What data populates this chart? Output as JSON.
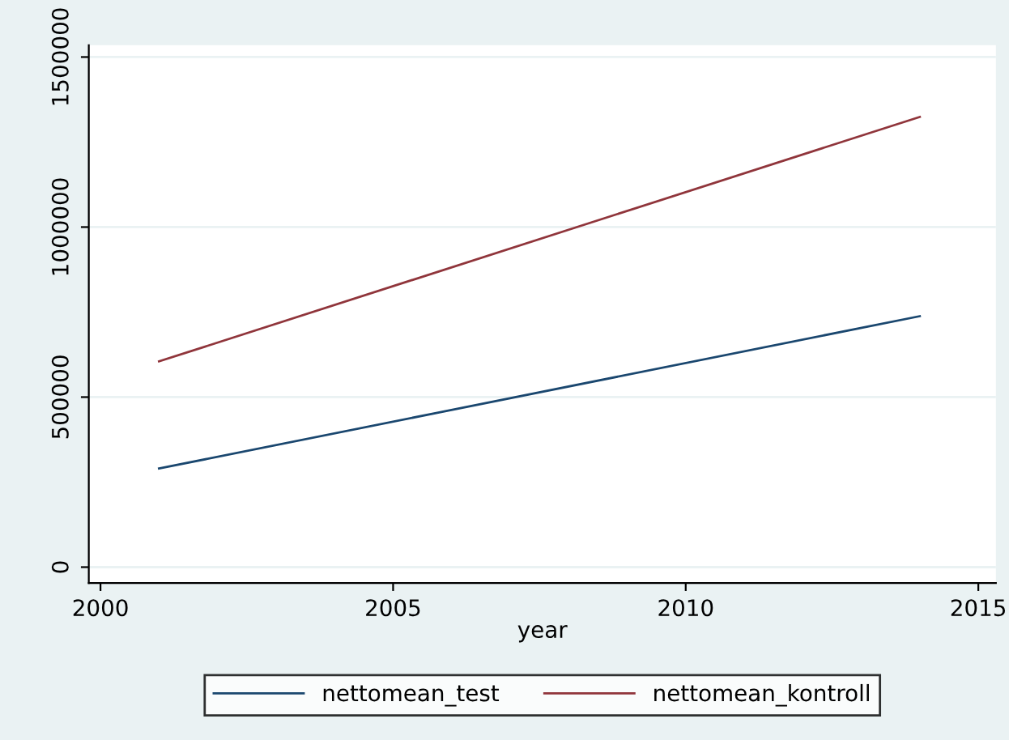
{
  "chart_data": {
    "type": "line",
    "xlabel": "year",
    "x": [
      2001,
      2014
    ],
    "series": [
      {
        "name": "nettomean_test",
        "color": "#1a476f",
        "values": [
          290000,
          738000
        ]
      },
      {
        "name": "nettomean_kontroll",
        "color": "#90353b",
        "values": [
          605000,
          1324000
        ]
      }
    ],
    "xlim": [
      1999.8,
      2015.3
    ],
    "xticks": [
      2000,
      2005,
      2010,
      2015
    ],
    "ylim": [
      -47000,
      1535000
    ],
    "yticks": [
      0,
      500000,
      1000000,
      1500000
    ],
    "grid": "y",
    "legend": "bottom",
    "marker": "none",
    "line_style": "solid"
  }
}
